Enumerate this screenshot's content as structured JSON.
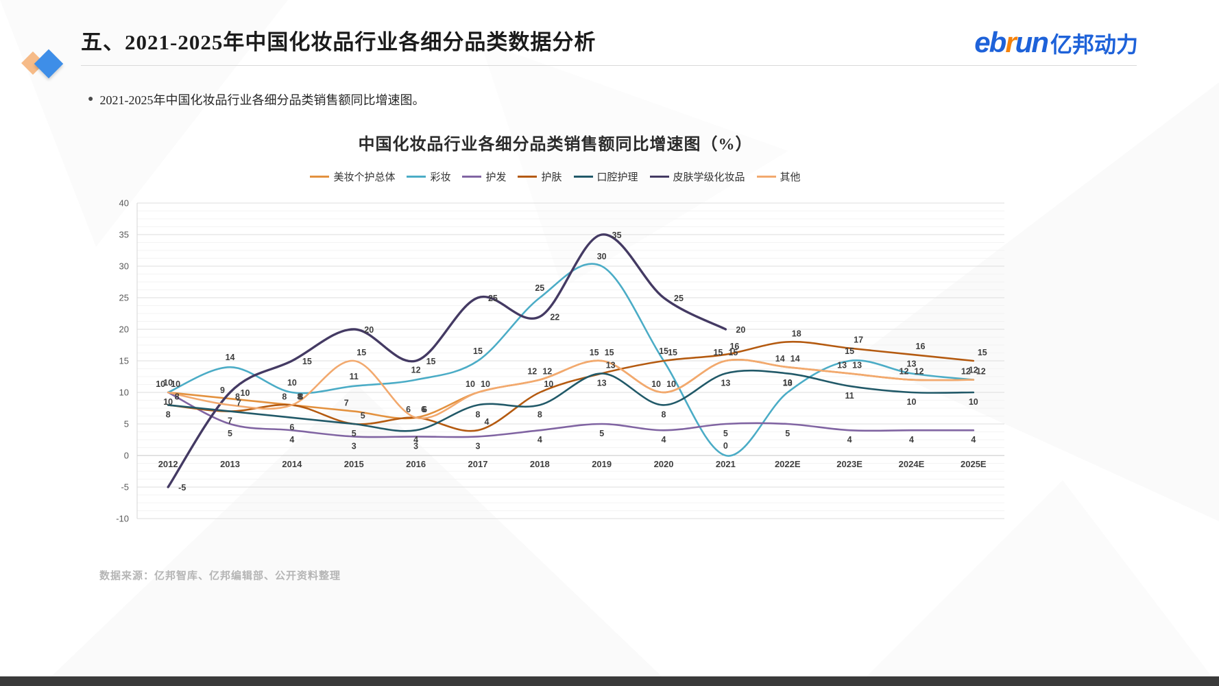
{
  "slide": {
    "title": "五、2021-2025年中国化妆品行业各细分品类数据分析",
    "bullet": "2021-2025年中国化妆品行业各细分品类销售额同比增速图。",
    "source": "数据来源：亿邦智库、亿邦编辑部、公开资料整理",
    "logo": {
      "part1": "eb",
      "part2": "r",
      "part3": "un",
      "cn": "亿邦动力",
      "blue": "#1e62d9",
      "orange": "#f5820b"
    }
  },
  "chart_data": {
    "type": "line",
    "title": "中国化妆品行业各细分品类销售额同比增速图（%）",
    "xlabel": "",
    "ylabel": "",
    "ylim": [
      -10,
      40
    ],
    "ytick_step": 5,
    "yticks": [
      -10,
      -5,
      0,
      5,
      10,
      15,
      20,
      25,
      30,
      35,
      40
    ],
    "grid": true,
    "legend_position": "top",
    "categories": [
      "2012",
      "2013",
      "2014",
      "2015",
      "2016",
      "2017",
      "2018",
      "2019",
      "2020",
      "2021",
      "2022E",
      "2023E",
      "2024E",
      "2025E"
    ],
    "series": [
      {
        "name": "美妆个护总体",
        "color": "#e3913e",
        "values": [
          10,
          9,
          8,
          7,
          6,
          10,
          12,
          15,
          10,
          15,
          14,
          13,
          12,
          12
        ]
      },
      {
        "name": "彩妆",
        "color": "#4bacc6",
        "values": [
          10,
          14,
          10,
          11,
          12,
          15,
          25,
          30,
          15,
          0,
          10,
          15,
          13,
          12
        ]
      },
      {
        "name": "护发",
        "color": "#8064a2",
        "values": [
          10,
          5,
          4,
          3,
          3,
          3,
          4,
          5,
          4,
          5,
          5,
          4,
          4,
          4
        ]
      },
      {
        "name": "护肤",
        "color": "#b45a10",
        "values": [
          8,
          7,
          8,
          5,
          6,
          4,
          10,
          13,
          15,
          16,
          18,
          17,
          16,
          15
        ]
      },
      {
        "name": "口腔护理",
        "color": "#215968",
        "values": [
          8,
          7,
          6,
          5,
          4,
          8,
          8,
          13,
          8,
          13,
          13,
          11,
          10,
          10
        ]
      },
      {
        "name": "皮肤学级化妆品",
        "color": "#443a63",
        "values": [
          -5,
          10,
          15,
          20,
          15,
          25,
          22,
          35,
          25,
          20,
          null,
          null,
          null,
          null
        ]
      },
      {
        "name": "其他",
        "color": "#f2a96e",
        "values": [
          10,
          8,
          8,
          15,
          6,
          10,
          12,
          15,
          10,
          15,
          14,
          13,
          12,
          12
        ]
      }
    ]
  }
}
